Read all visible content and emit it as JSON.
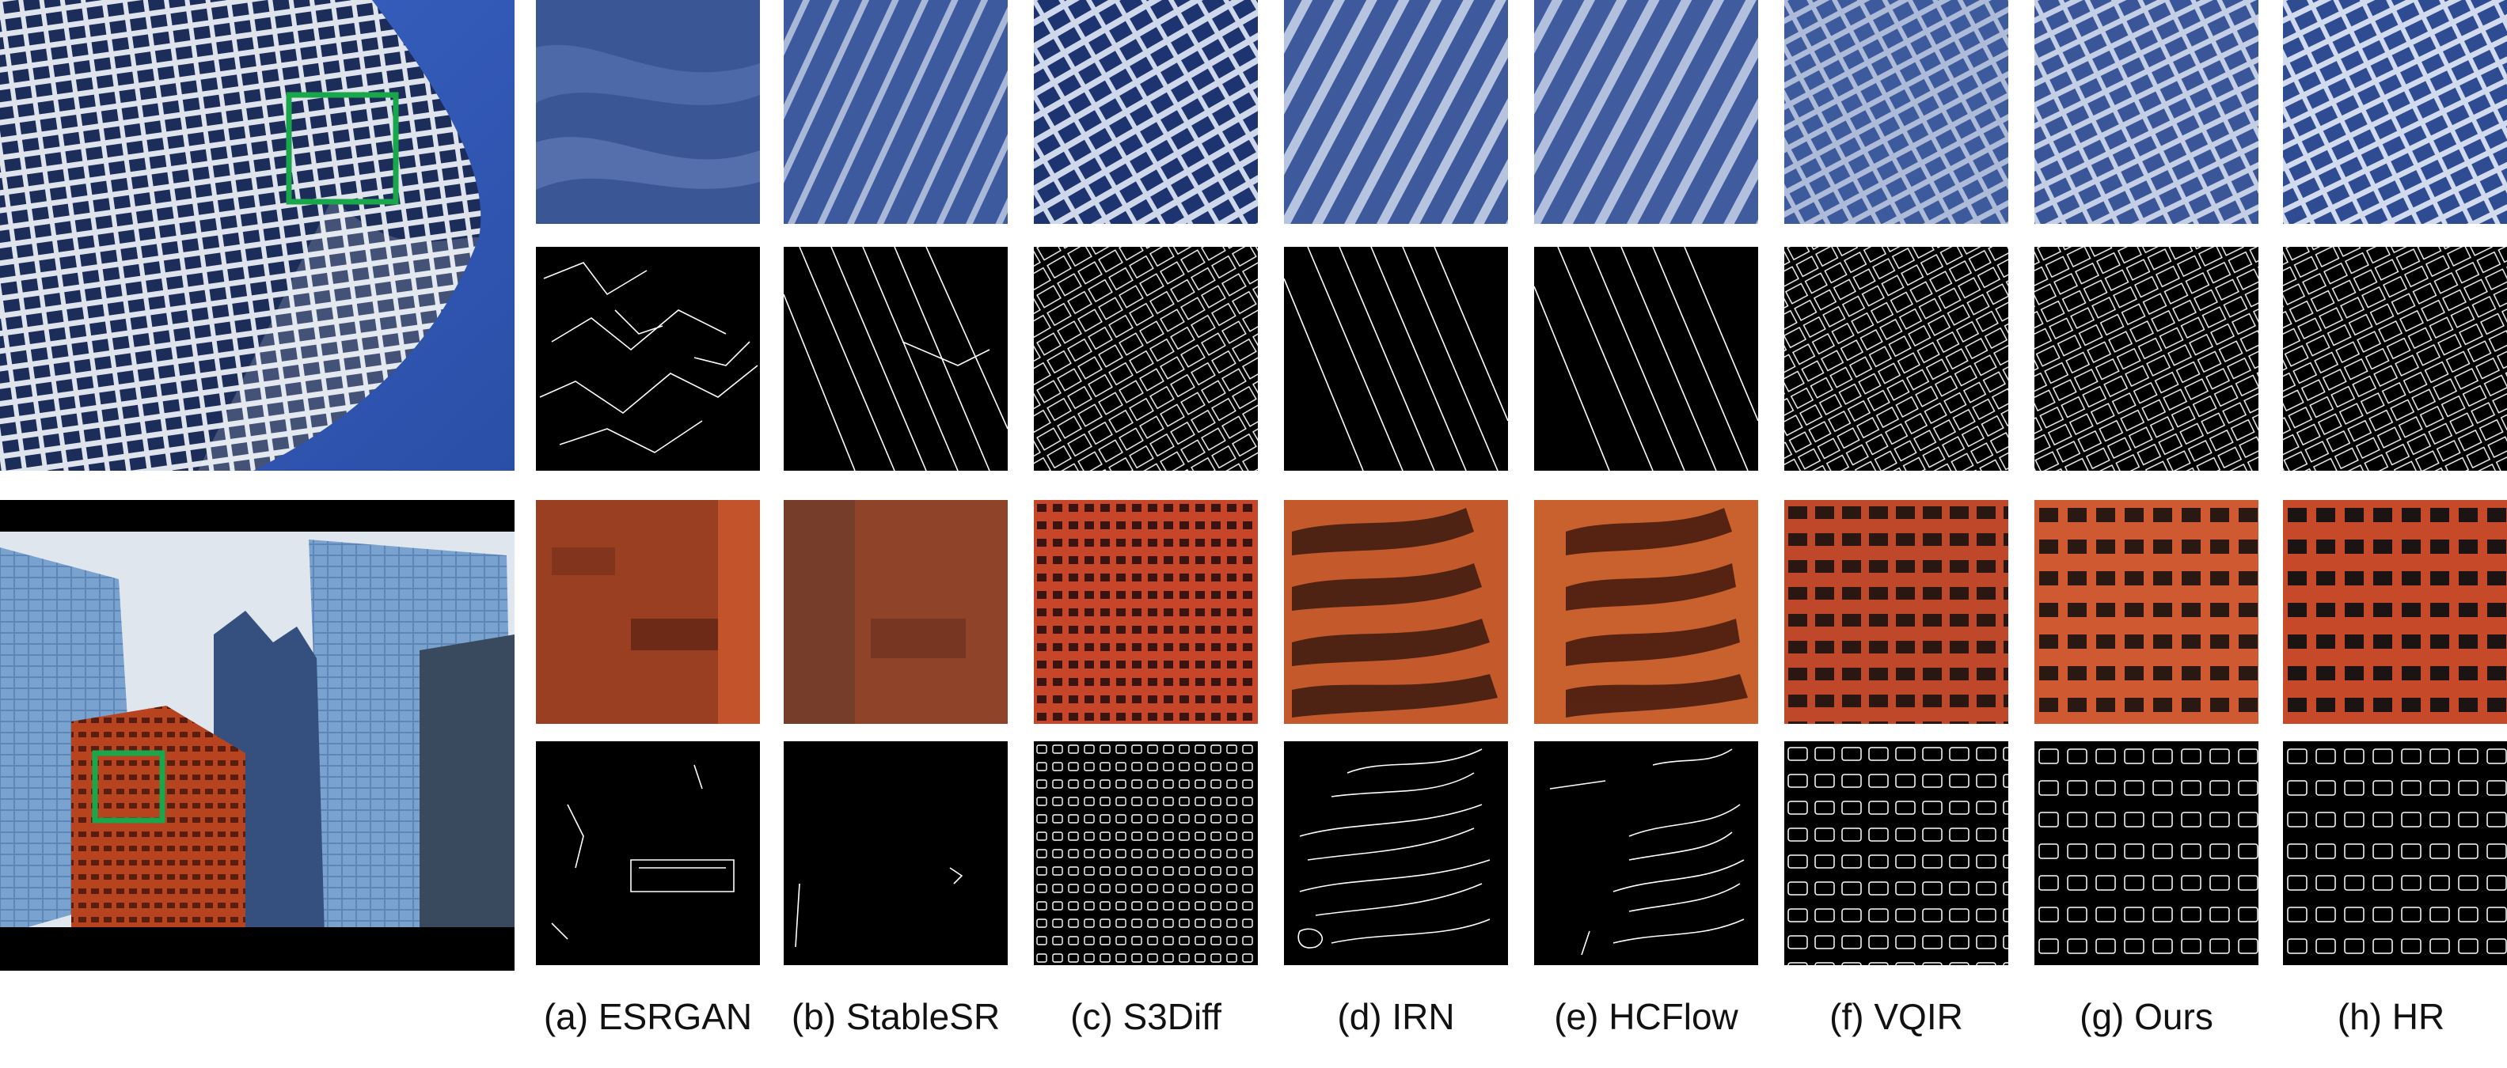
{
  "captions": [
    {
      "label": "(a) ESRGAN"
    },
    {
      "label": "(b) StableSR"
    },
    {
      "label": "(c) S3Diff"
    },
    {
      "label": "(d) IRN"
    },
    {
      "label": "(e) HCFlow"
    },
    {
      "label": "(f) VQIR"
    },
    {
      "label": "(g) Ours"
    },
    {
      "label": "(h) HR"
    }
  ],
  "colors": {
    "highlight_box": "#1aa64a",
    "sky_blue": "#2a55b8",
    "facade_blue": "#2b3f7a",
    "brick": "#b8431f",
    "edge_background": "#000000",
    "edge_line": "#ffffff"
  },
  "rows": [
    {
      "scene": "glass-tower",
      "kind": "crop"
    },
    {
      "scene": "glass-tower",
      "kind": "edge-map"
    },
    {
      "scene": "brick-building",
      "kind": "crop"
    },
    {
      "scene": "brick-building",
      "kind": "edge-map"
    }
  ]
}
